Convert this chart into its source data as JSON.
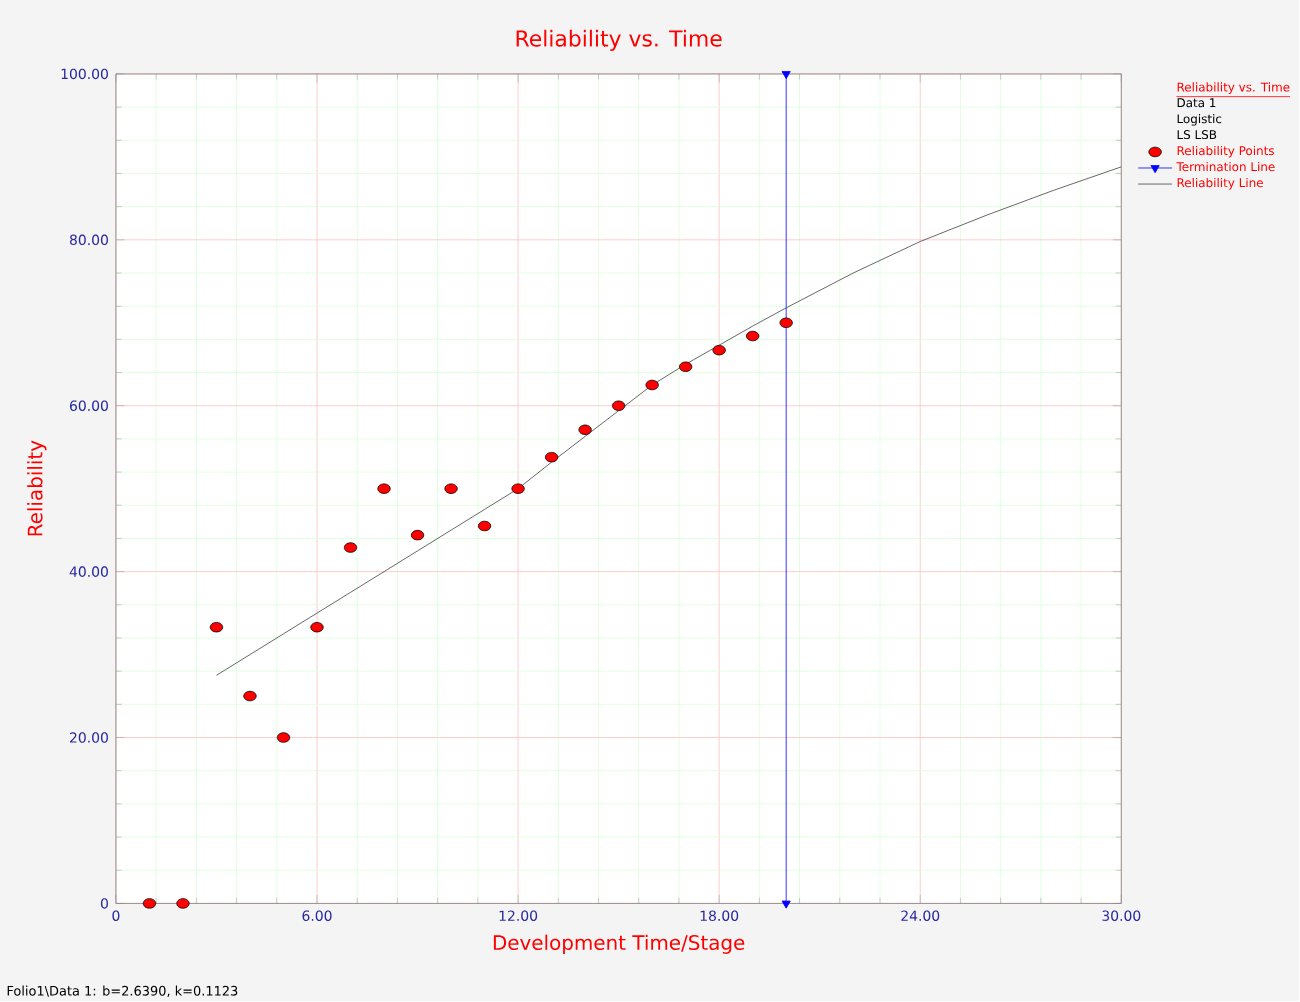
{
  "chart_data": {
    "type": "scatter",
    "title": "Reliability vs. Time",
    "xlabel": "Development Time/Stage",
    "ylabel": "Reliability",
    "legend_title": "Reliability vs. Time",
    "x": [
      1,
      2,
      3,
      4,
      5,
      6,
      7,
      8,
      9,
      10,
      11,
      12,
      13,
      14,
      15,
      16,
      17,
      18,
      19,
      20
    ],
    "series": [
      {
        "name": "Reliability Points",
        "color": "#ff0000",
        "marker": "circle",
        "values": [
          0,
          0,
          33.3,
          25,
          20,
          33.3,
          42.9,
          50,
          44.4,
          50,
          45.5,
          50,
          53.8,
          57.1,
          60,
          62.5,
          64.7,
          66.7,
          68.4,
          70
        ]
      },
      {
        "name": "Termination Line",
        "type": "line",
        "color": "#0000ff",
        "marker": "triangle",
        "x": [
          20,
          20
        ],
        "values": [
          0,
          100
        ]
      },
      {
        "name": "Reliability Line",
        "type": "line",
        "color": "#404040",
        "marker": "none",
        "x": [
          3,
          4,
          5,
          6,
          7,
          8,
          9,
          10,
          11,
          12,
          13,
          14,
          15,
          16,
          17,
          18,
          19,
          20,
          22,
          24,
          26,
          28,
          30
        ],
        "values": [
          27.5,
          30,
          32.5,
          35,
          37.5,
          40,
          42.5,
          45,
          47.5,
          50,
          53.2,
          56.3,
          59.4,
          62.5,
          65,
          67.3,
          69.6,
          71.8,
          76,
          79.8,
          83,
          86,
          88.8
        ]
      }
    ],
    "xlim": [
      0,
      30
    ],
    "xticks": [
      0,
      {
        "value": 6,
        "label": "6.00"
      },
      {
        "value": 12,
        "label": "12.00"
      },
      {
        "value": 18,
        "label": "18.00"
      },
      {
        "value": 24,
        "label": "24.00"
      },
      {
        "value": 30,
        "label": "30.00"
      }
    ],
    "ylim": [
      0,
      100
    ],
    "yticks": [
      0,
      {
        "value": 20,
        "label": "20.00"
      },
      {
        "value": 40,
        "label": "40.00"
      },
      {
        "value": 60,
        "label": "60.00"
      },
      {
        "value": 80,
        "label": "80.00"
      },
      {
        "value": 100,
        "label": "100.00"
      }
    ],
    "grid": true,
    "legend": "right",
    "annotations": [
      "Data 1",
      "Logistic",
      "LS LSB",
      "Folio1\\Data 1: b=2.6390, k=0.1123"
    ]
  }
}
